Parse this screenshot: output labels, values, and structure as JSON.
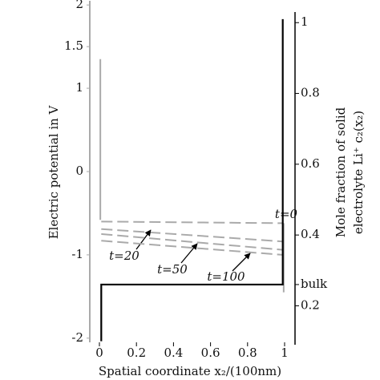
{
  "chart_data": {
    "type": "line",
    "x_label": "Spatial coordinate x₂/(100nm)",
    "y_label": "Electric potential in V",
    "y2_label": [
      "Mole fraction of solid",
      "electrolyte Li⁺ c₂(x₂)"
    ],
    "xlim": [
      0,
      1
    ],
    "xticks": [
      0,
      0.2,
      0.4,
      0.6,
      0.8,
      1
    ],
    "ylim": [
      -2.05,
      2.05
    ],
    "yticks": [
      -2,
      -1,
      0,
      1,
      1.5,
      2
    ],
    "y2lim": [
      0.09,
      1.03
    ],
    "y2ticks": [
      0.2,
      {
        "value": 0.26,
        "label": "bulk"
      },
      0.4,
      0.6,
      0.8,
      1
    ],
    "series": [
      {
        "color": "#aaaaaa",
        "style": "solid",
        "x": [
          0.005,
          0.005
        ],
        "values": [
          1.35,
          -0.58
        ]
      },
      {
        "name": "t=0",
        "color": "#aaaaaa",
        "style": "dashed",
        "x": [
          0.01,
          0.99
        ],
        "values": [
          -0.6,
          -0.62
        ]
      },
      {
        "name": "t=20",
        "color": "#aaaaaa",
        "style": "dashed",
        "x": [
          0.01,
          0.99
        ],
        "values": [
          -0.69,
          -0.84
        ]
      },
      {
        "name": "t=50",
        "color": "#aaaaaa",
        "style": "dashed",
        "x": [
          0.01,
          0.99
        ],
        "values": [
          -0.75,
          -0.94
        ]
      },
      {
        "name": "t=100",
        "color": "#aaaaaa",
        "style": "dashed",
        "x": [
          0.01,
          0.99
        ],
        "values": [
          -0.83,
          -1.0
        ]
      },
      {
        "color": "#aaaaaa",
        "style": "solid",
        "x": [
          0.995,
          0.995
        ],
        "values": [
          -0.62,
          -1.45
        ]
      },
      {
        "color": "#000000",
        "style": "solid",
        "axis": "y2",
        "x": [
          0.01,
          0.01,
          0.99,
          0.99
        ],
        "values": [
          0.1,
          0.26,
          0.26,
          1.01
        ]
      }
    ]
  }
}
